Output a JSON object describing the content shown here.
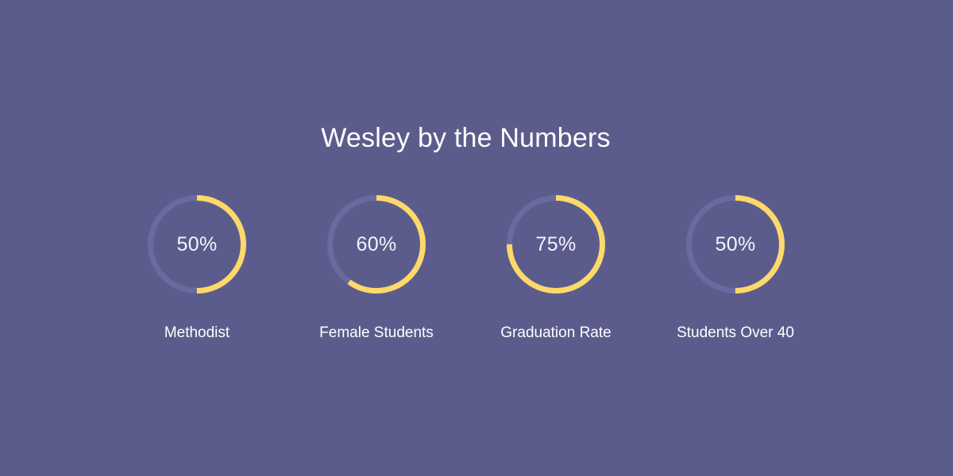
{
  "section": {
    "title": "Wesley by the Numbers"
  },
  "colors": {
    "background": "#5c5c8c",
    "ring_track": "#6a6aa0",
    "ring_fill": "#fdd86a"
  },
  "stats": [
    {
      "percent_label": "50%",
      "value": 0.5,
      "label": "Methodist"
    },
    {
      "percent_label": "60%",
      "value": 0.6,
      "label": "Female Students"
    },
    {
      "percent_label": "75%",
      "value": 0.75,
      "label": "Graduation Rate"
    },
    {
      "percent_label": "50%",
      "value": 0.5,
      "label": "Students Over 40"
    }
  ]
}
